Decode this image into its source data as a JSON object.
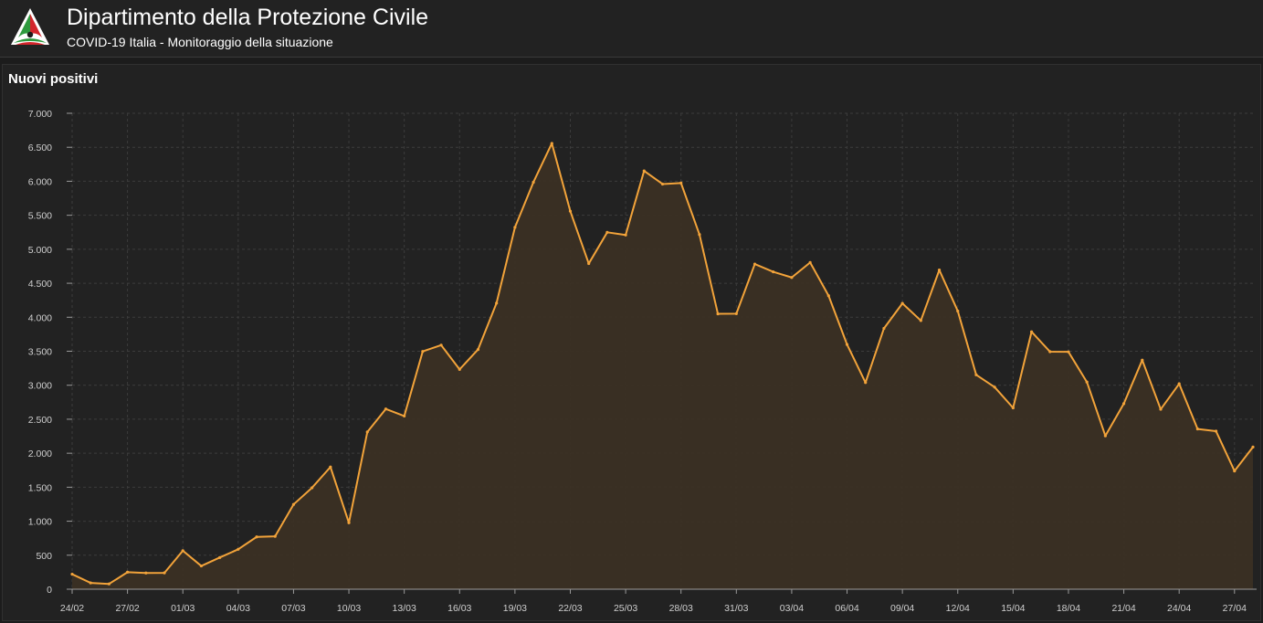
{
  "header": {
    "title": "Dipartimento della Protezione Civile",
    "subtitle": "COVID-19 Italia - Monitoraggio della situazione"
  },
  "colors": {
    "background": "#1c1c1c",
    "panel": "#222222",
    "line": "#f2a33a",
    "area": "#3b3024",
    "grid": "#3c3c3c",
    "logo_green": "#2e9a3e",
    "logo_red": "#d3262c",
    "logo_white": "#ffffff"
  },
  "chart_data": {
    "type": "area",
    "title": "Nuovi positivi",
    "xlabel": "",
    "ylabel": "",
    "ylim": [
      0,
      7000
    ],
    "yticks": [
      0,
      500,
      1000,
      1500,
      2000,
      2500,
      3000,
      3500,
      4000,
      4500,
      5000,
      5500,
      6000,
      6500,
      7000
    ],
    "ytick_labels": [
      "0",
      "500",
      "1.000",
      "1.500",
      "2.000",
      "2.500",
      "3.000",
      "3.500",
      "4.000",
      "4.500",
      "5.000",
      "5.500",
      "6.000",
      "6.500",
      "7.000"
    ],
    "xtick_labels": [
      "24/02",
      "27/02",
      "01/03",
      "04/03",
      "07/03",
      "10/03",
      "13/03",
      "16/03",
      "19/03",
      "22/03",
      "25/03",
      "28/03",
      "31/03",
      "03/04",
      "06/04",
      "09/04",
      "12/04",
      "15/04",
      "18/04",
      "21/04",
      "24/04",
      "27/04"
    ],
    "grid": true,
    "x": [
      "24/02",
      "25/02",
      "26/02",
      "27/02",
      "28/02",
      "29/02",
      "01/03",
      "02/03",
      "03/03",
      "04/03",
      "05/03",
      "06/03",
      "07/03",
      "08/03",
      "09/03",
      "10/03",
      "11/03",
      "12/03",
      "13/03",
      "14/03",
      "15/03",
      "16/03",
      "17/03",
      "18/03",
      "19/03",
      "20/03",
      "21/03",
      "22/03",
      "23/03",
      "24/03",
      "25/03",
      "26/03",
      "27/03",
      "28/03",
      "29/03",
      "30/03",
      "31/03",
      "01/04",
      "02/04",
      "03/04",
      "04/04",
      "05/04",
      "06/04",
      "07/04",
      "08/04",
      "09/04",
      "10/04",
      "11/04",
      "12/04",
      "13/04",
      "14/04",
      "15/04",
      "16/04",
      "17/04",
      "18/04",
      "19/04",
      "20/04",
      "21/04",
      "22/04",
      "23/04",
      "24/04",
      "25/04",
      "26/04",
      "27/04",
      "28/04"
    ],
    "values": [
      221,
      93,
      78,
      250,
      238,
      240,
      566,
      342,
      466,
      587,
      769,
      778,
      1247,
      1492,
      1797,
      977,
      2313,
      2651,
      2547,
      3497,
      3590,
      3233,
      3526,
      4207,
      5322,
      5986,
      6557,
      5560,
      4789,
      5249,
      5210,
      6153,
      5959,
      5974,
      5217,
      4050,
      4053,
      4782,
      4668,
      4585,
      4805,
      4316,
      3599,
      3039,
      3836,
      4204,
      3951,
      4694,
      4092,
      3153,
      2972,
      2667,
      3786,
      3493,
      3491,
      3047,
      2256,
      2729,
      3370,
      2646,
      3021,
      2357,
      2324,
      1739,
      2091
    ]
  }
}
